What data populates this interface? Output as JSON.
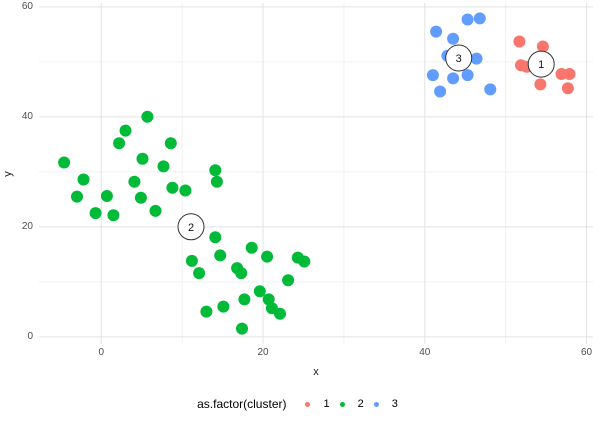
{
  "figure": {
    "background": "#ffffff",
    "gridline_major_color": "#e3e3e3",
    "gridline_minor_color": "#f0f0f0",
    "tick_text_color": "#4d4d4d"
  },
  "chart_data": {
    "type": "scatter",
    "title": "",
    "xlabel": "x",
    "ylabel": "y",
    "xlim": [
      -7.7,
      60.8
    ],
    "ylim": [
      -1.3,
      60.7
    ],
    "xticks": [
      0,
      20,
      40,
      60
    ],
    "yticks": [
      0,
      20,
      40,
      60
    ],
    "x_minor_ticks": [
      10,
      30,
      50
    ],
    "y_minor_ticks": [
      10,
      30,
      50
    ],
    "grid": "major+minor",
    "legend_position": "bottom",
    "legend_title": "as.factor(cluster)",
    "point_radius": 6,
    "series": [
      {
        "name": "1",
        "color": "#F8766D",
        "points": [
          [
            51.7,
            53.7
          ],
          [
            54.6,
            52.8
          ],
          [
            51.9,
            49.4
          ],
          [
            52.6,
            49.1
          ],
          [
            54.3,
            45.9
          ],
          [
            56.9,
            47.8
          ],
          [
            57.9,
            47.8
          ],
          [
            57.7,
            45.2
          ]
        ]
      },
      {
        "name": "2",
        "color": "#00BA38",
        "points": [
          [
            -4.6,
            31.7
          ],
          [
            2.2,
            35.2
          ],
          [
            8.6,
            35.2
          ],
          [
            5.7,
            40.0
          ],
          [
            3.0,
            37.5
          ],
          [
            5.1,
            32.4
          ],
          [
            7.7,
            31.0
          ],
          [
            14.1,
            30.3
          ],
          [
            14.3,
            28.2
          ],
          [
            -2.2,
            28.6
          ],
          [
            4.1,
            28.2
          ],
          [
            8.8,
            27.1
          ],
          [
            10.4,
            26.6
          ],
          [
            -3.0,
            25.5
          ],
          [
            0.7,
            25.6
          ],
          [
            4.9,
            25.3
          ],
          [
            -0.7,
            22.5
          ],
          [
            1.5,
            22.1
          ],
          [
            6.7,
            22.9
          ],
          [
            14.1,
            18.1
          ],
          [
            14.7,
            14.8
          ],
          [
            11.2,
            13.8
          ],
          [
            12.1,
            11.6
          ],
          [
            18.6,
            16.2
          ],
          [
            20.5,
            14.6
          ],
          [
            24.3,
            14.4
          ],
          [
            25.1,
            13.7
          ],
          [
            16.8,
            12.5
          ],
          [
            17.3,
            11.6
          ],
          [
            23.1,
            10.3
          ],
          [
            19.6,
            8.3
          ],
          [
            17.7,
            6.8
          ],
          [
            20.7,
            6.8
          ],
          [
            21.1,
            5.2
          ],
          [
            22.1,
            4.2
          ],
          [
            13.0,
            4.6
          ],
          [
            15.1,
            5.5
          ],
          [
            17.4,
            1.5
          ]
        ]
      },
      {
        "name": "3",
        "color": "#619CFF",
        "points": [
          [
            45.3,
            57.7
          ],
          [
            46.8,
            57.9
          ],
          [
            41.4,
            55.5
          ],
          [
            43.5,
            54.2
          ],
          [
            42.8,
            51.1
          ],
          [
            46.4,
            50.6
          ],
          [
            41.0,
            47.6
          ],
          [
            43.5,
            47.0
          ],
          [
            45.3,
            47.6
          ],
          [
            41.9,
            44.6
          ],
          [
            48.1,
            45.0
          ]
        ]
      }
    ],
    "cluster_centers": [
      {
        "label": "1",
        "x": 54.4,
        "y": 49.6
      },
      {
        "label": "2",
        "x": 11.1,
        "y": 20.0
      },
      {
        "label": "3",
        "x": 44.2,
        "y": 50.7
      }
    ],
    "center_circle": {
      "radius": 13,
      "fill": "#ffffff",
      "stroke": "#333333",
      "label_color": "#111111"
    }
  }
}
